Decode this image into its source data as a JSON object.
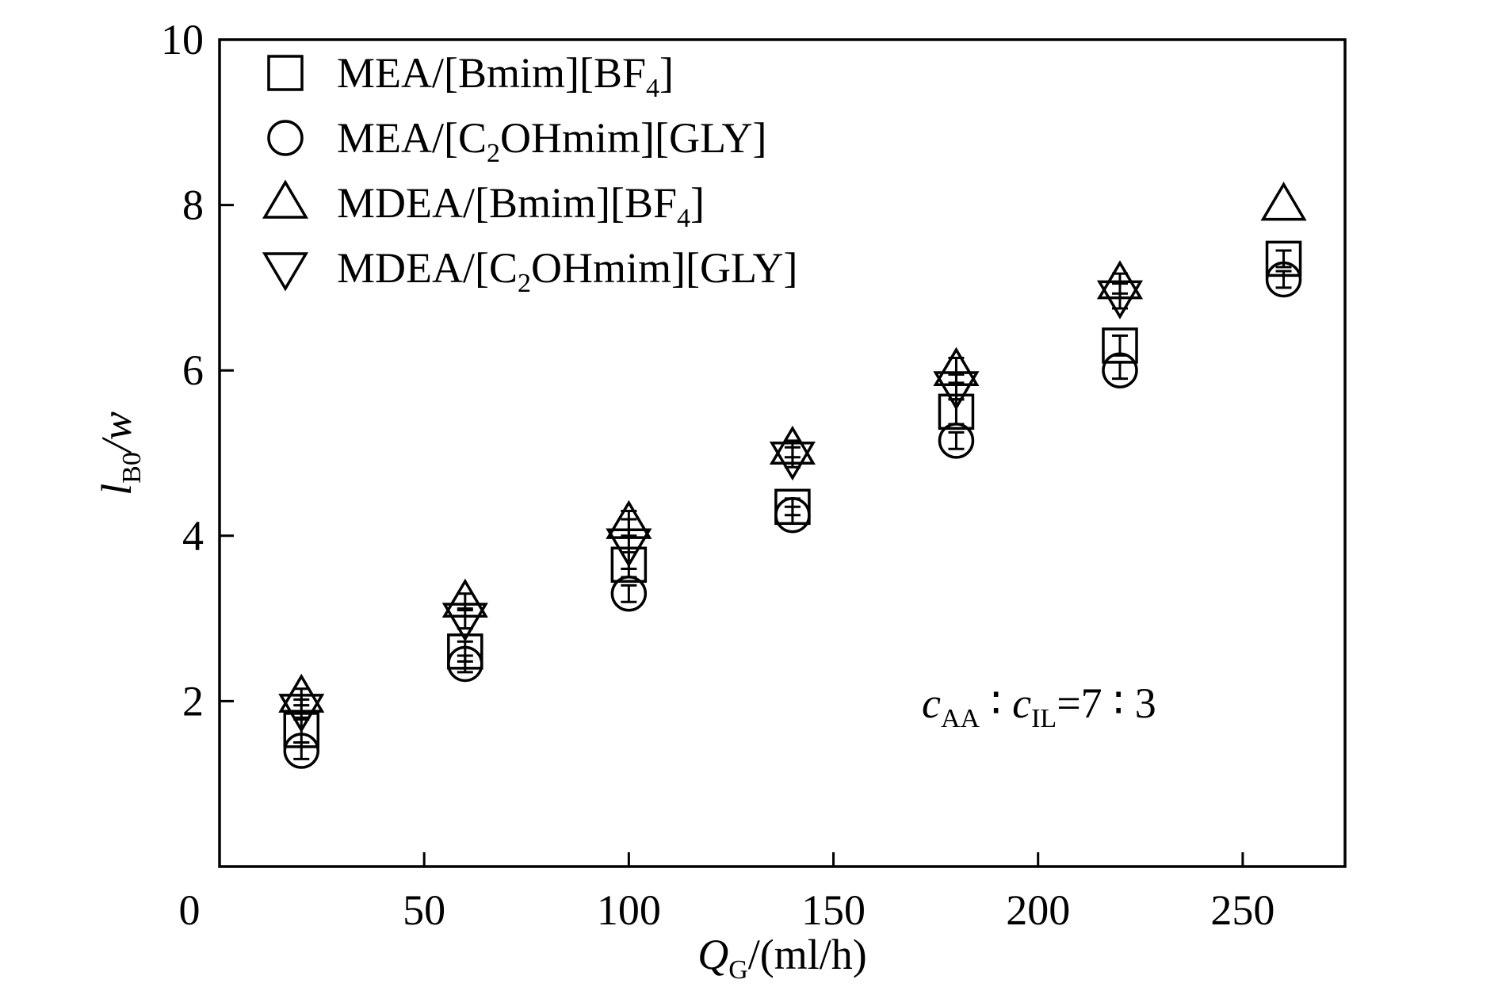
{
  "chart_data": {
    "type": "scatter",
    "xlabel": {
      "main": "Q",
      "sub": "G",
      "rest": "/(ml/h)"
    },
    "ylabel": {
      "main": "l",
      "sub": "B0",
      "rest": "/w"
    },
    "xlim": [
      0,
      275
    ],
    "ylim": [
      0,
      10
    ],
    "xticks": [
      0,
      50,
      100,
      150,
      200,
      250
    ],
    "yticks": [
      2,
      4,
      6,
      8,
      10
    ],
    "xtick_labels": [
      "0",
      "50",
      "100",
      "150",
      "200",
      "250"
    ],
    "ytick_labels": [
      "2",
      "4",
      "6",
      "8",
      "10"
    ],
    "grid": false,
    "legend_position": "top-left",
    "annotation": {
      "c1": "c",
      "s1": "AA",
      "sep1": " ∶ ",
      "c2": "c",
      "s2": "IL",
      "rest": "=7 ∶ 3"
    },
    "series": [
      {
        "name": "MEA/[Bmim][BF4]",
        "name_parts": {
          "pre": "MEA/[Bmim][BF",
          "sub": "4",
          "post": "]"
        },
        "marker": "square",
        "x": [
          20,
          60,
          100,
          140,
          180,
          220,
          260
        ],
        "y": [
          1.65,
          2.6,
          3.65,
          4.35,
          5.5,
          6.3,
          7.35
        ],
        "err": [
          0.15,
          0.12,
          0.15,
          0.1,
          0.15,
          0.12,
          0.1
        ]
      },
      {
        "name": "MEA/[C2OHmim][GLY]",
        "name_parts": {
          "pre": "MEA/[C",
          "sub": "2",
          "post": "OHmim][GLY]"
        },
        "marker": "circle",
        "x": [
          20,
          60,
          100,
          140,
          180,
          220,
          260
        ],
        "y": [
          1.4,
          2.45,
          3.3,
          4.25,
          5.15,
          6.0,
          7.1
        ],
        "err": [
          0.1,
          0.1,
          0.1,
          0.1,
          0.1,
          0.1,
          0.1
        ]
      },
      {
        "name": "MDEA/[Bmim][BF4]",
        "name_parts": {
          "pre": "MDEA/[Bmim][BF",
          "sub": "4",
          "post": "]"
        },
        "marker": "triangle-up",
        "x": [
          20,
          60,
          100,
          140,
          180,
          220,
          260
        ],
        "y": [
          2.05,
          3.2,
          4.15,
          5.05,
          6.0,
          7.05,
          8.0
        ],
        "err": [
          0.1,
          0.1,
          0.15,
          0.1,
          0.15,
          0.12,
          0.0
        ]
      },
      {
        "name": "MDEA/[C2OHmim][GLY]",
        "name_parts": {
          "pre": "MDEA/[C",
          "sub": "2",
          "post": "OHmim][GLY]"
        },
        "marker": "triangle-down",
        "x": [
          20,
          60,
          100,
          140,
          180,
          220
        ],
        "y": [
          1.9,
          3.0,
          3.9,
          4.95,
          5.8,
          6.9
        ],
        "err": [
          0.12,
          0.12,
          0.3,
          0.12,
          0.15,
          0.15
        ]
      }
    ]
  }
}
